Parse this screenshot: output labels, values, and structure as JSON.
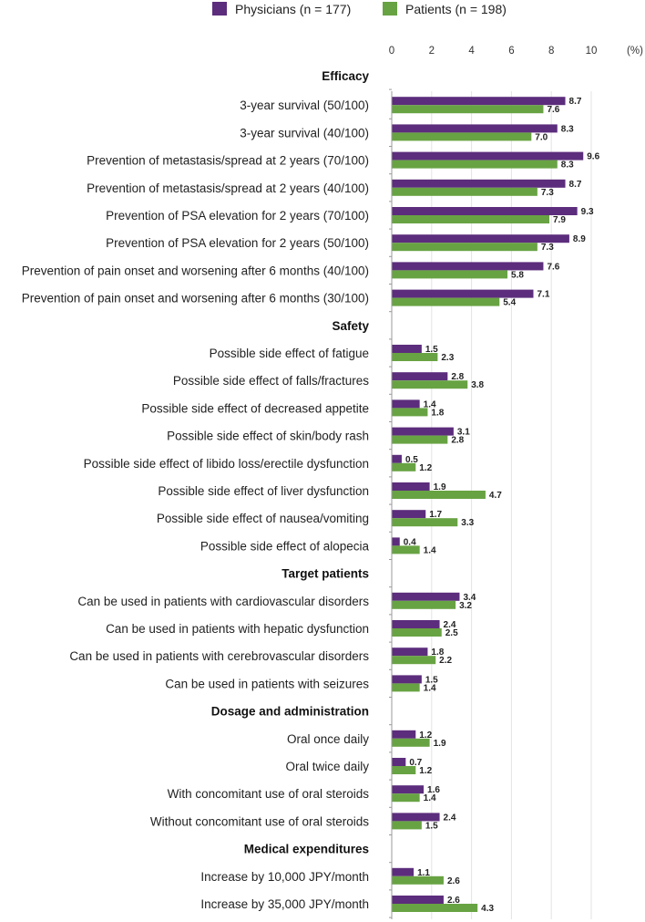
{
  "chart_data": {
    "type": "bar",
    "orientation": "horizontal",
    "unit": "(%)",
    "xlim": [
      0,
      10
    ],
    "xticks": [
      "0",
      "2",
      "4",
      "6",
      "8",
      "10"
    ],
    "grid": true,
    "legend_placement": "top",
    "colors": {
      "Physicians": "#5c2d7c",
      "Patients": "#68a343"
    },
    "series": [
      {
        "name": "Physicians (n = 177)",
        "key": "Physicians"
      },
      {
        "name": "Patients (n = 198)",
        "key": "Patients"
      }
    ],
    "groups": [
      {
        "header": "Efficacy",
        "items": [
          {
            "label": "3-year survival (50/100)",
            "values": [
              8.7,
              7.6
            ]
          },
          {
            "label": "3-year survival (40/100)",
            "values": [
              8.3,
              7.0
            ]
          },
          {
            "label": "Prevention of metastasis/spread at 2 years (70/100)",
            "values": [
              9.6,
              8.3
            ]
          },
          {
            "label": "Prevention of metastasis/spread at 2 years (40/100)",
            "values": [
              8.7,
              7.3
            ]
          },
          {
            "label": "Prevention of PSA elevation for 2 years (70/100)",
            "values": [
              9.3,
              7.9
            ]
          },
          {
            "label": "Prevention of PSA elevation for 2 years (50/100)",
            "values": [
              8.9,
              7.3
            ]
          },
          {
            "label": "Prevention of pain onset and worsening after 6 months (40/100)",
            "values": [
              7.6,
              5.8
            ]
          },
          {
            "label": "Prevention of pain onset and worsening after 6 months (30/100)",
            "values": [
              7.1,
              5.4
            ]
          }
        ]
      },
      {
        "header": "Safety",
        "items": [
          {
            "label": "Possible side effect of fatigue",
            "values": [
              1.5,
              2.3
            ]
          },
          {
            "label": "Possible side effect of falls/fractures",
            "values": [
              2.8,
              3.8
            ]
          },
          {
            "label": "Possible side effect of decreased appetite",
            "values": [
              1.4,
              1.8
            ]
          },
          {
            "label": "Possible side effect of skin/body rash",
            "values": [
              3.1,
              2.8
            ]
          },
          {
            "label": "Possible side effect of libido loss/erectile dysfunction",
            "values": [
              0.5,
              1.2
            ]
          },
          {
            "label": "Possible side effect of liver dysfunction",
            "values": [
              1.9,
              4.7
            ]
          },
          {
            "label": "Possible side effect of nausea/vomiting",
            "values": [
              1.7,
              3.3
            ]
          },
          {
            "label": "Possible side effect of alopecia",
            "values": [
              0.4,
              1.4
            ]
          }
        ]
      },
      {
        "header": "Target patients",
        "items": [
          {
            "label": "Can be used in patients with cardiovascular disorders",
            "values": [
              3.4,
              3.2
            ]
          },
          {
            "label": "Can be used in patients with hepatic dysfunction",
            "values": [
              2.4,
              2.5
            ]
          },
          {
            "label": "Can be used in patients with cerebrovascular disorders",
            "values": [
              1.8,
              2.2
            ]
          },
          {
            "label": "Can be used in patients with seizures",
            "values": [
              1.5,
              1.4
            ]
          }
        ]
      },
      {
        "header": "Dosage and administration",
        "items": [
          {
            "label": "Oral once daily",
            "values": [
              1.2,
              1.9
            ]
          },
          {
            "label": "Oral twice daily",
            "values": [
              0.7,
              1.2
            ]
          },
          {
            "label": "With concomitant use of oral steroids",
            "values": [
              1.6,
              1.4
            ]
          },
          {
            "label": "Without concomitant use of oral steroids",
            "values": [
              2.4,
              1.5
            ]
          }
        ]
      },
      {
        "header": "Medical expenditures",
        "items": [
          {
            "label": "Increase by 10,000 JPY/month",
            "values": [
              1.1,
              2.6
            ]
          },
          {
            "label": "Increase by 35,000 JPY/month",
            "values": [
              2.6,
              4.3
            ]
          }
        ]
      }
    ]
  }
}
